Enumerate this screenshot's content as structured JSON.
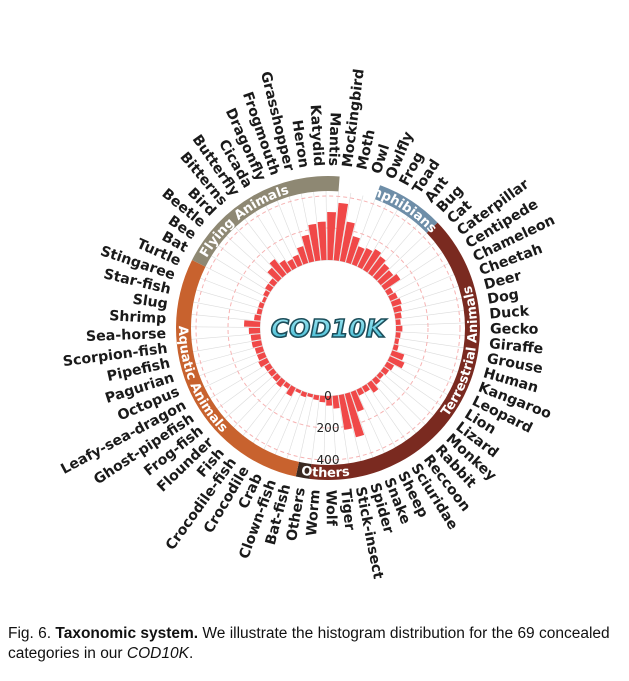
{
  "chart_data": {
    "type": "bar",
    "polar": true,
    "center_label": "COD10K",
    "radial_ticks": [
      "0",
      "200",
      "400"
    ],
    "rlim": [
      0,
      450
    ],
    "grid": true,
    "colors": {
      "bar": "#f04848",
      "grid": "#dcdcdc",
      "dashed_ring": "#f6b3b3"
    },
    "groups": [
      {
        "name": "Amphibians",
        "color": "#6e8ea8"
      },
      {
        "name": "Terrestrial Animals",
        "color": "#7a2a20"
      },
      {
        "name": "Others",
        "color": "#3a2a22"
      },
      {
        "name": "Aquatic Animals",
        "color": "#c8622e"
      },
      {
        "name": "Flying Animals",
        "color": "#8e8873"
      }
    ],
    "categories": [
      "Mockingbird",
      "Moth",
      "Owl",
      "Owlfly",
      "Frog",
      "Toad",
      "Ant",
      "Bug",
      "Cat",
      "Caterpillar",
      "Centipede",
      "Chameleon",
      "Cheetah",
      "Deer",
      "Dog",
      "Duck",
      "Gecko",
      "Giraffe",
      "Grouse",
      "Human",
      "Kangaroo",
      "Leopard",
      "Lion",
      "Lizard",
      "Monkey",
      "Rabbit",
      "Reccoon",
      "Sciuridae",
      "Sheep",
      "Snake",
      "Spider",
      "Stick-insect",
      "Tiger",
      "Wolf",
      "Worm",
      "Others",
      "Bat-fish",
      "Clown-fish",
      "Crab",
      "Crocodile",
      "Crocodile-fish",
      "Fish",
      "Flounder",
      "Frog-fish",
      "Ghost-pipefish",
      "Leafy-sea-dragon",
      "Octopus",
      "Pagurian",
      "Pipefish",
      "Scorpion-fish",
      "Sea-horse",
      "Shrimp",
      "Slug",
      "Star-fish",
      "Stingaree",
      "Turtle",
      "Bat",
      "Bee",
      "Beetle",
      "Bird",
      "Bitterns",
      "Butterfly",
      "Cicada",
      "Dragonfly",
      "Frogmouth",
      "Grasshopper",
      "Heron",
      "Katydid",
      "Mantis"
    ],
    "values": [
      360,
      250,
      170,
      120,
      130,
      150,
      130,
      110,
      100,
      120,
      40,
      50,
      60,
      50,
      40,
      30,
      40,
      30,
      25,
      30,
      80,
      100,
      50,
      40,
      30,
      40,
      70,
      40,
      40,
      130,
      280,
      220,
      80,
      60,
      40,
      30,
      20,
      30,
      20,
      60,
      30,
      50,
      40,
      40,
      40,
      60,
      50,
      50,
      60,
      60,
      70,
      100,
      40,
      30,
      30,
      20,
      30,
      40,
      40,
      90,
      120,
      80,
      60,
      70,
      110,
      170,
      230,
      240,
      300
    ]
  },
  "caption": {
    "prefix": "Fig. 6.",
    "bold": "Taxonomic system.",
    "text": " We illustrate the histogram distribution for the 69 concealed categories in our ",
    "italic": "COD10K",
    "suffix": "."
  }
}
